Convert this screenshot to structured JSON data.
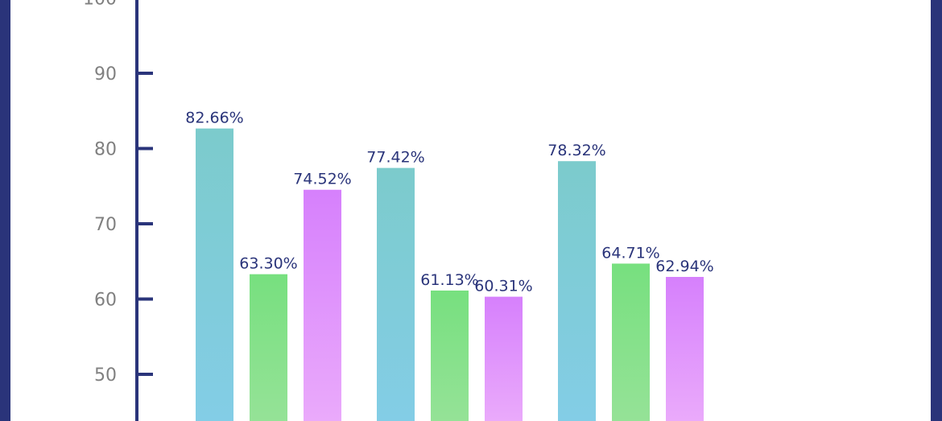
{
  "chart_data": {
    "type": "bar",
    "title": "",
    "xlabel": "",
    "ylabel": "",
    "ylim": [
      43.5,
      101.5
    ],
    "yticks": [
      50,
      60,
      70,
      80,
      90,
      100
    ],
    "categories": [
      "",
      "",
      ""
    ],
    "series": [
      {
        "values": [
          82.66,
          77.42,
          78.32
        ],
        "labels": [
          "82.66%",
          "77.42%",
          "78.32%"
        ]
      },
      {
        "values": [
          63.3,
          61.13,
          64.71
        ],
        "labels": [
          "63.30%",
          "61.13%",
          "64.71%"
        ]
      },
      {
        "values": [
          74.52,
          60.31,
          62.94
        ],
        "labels": [
          "74.52%",
          "60.31%",
          "62.94%"
        ]
      }
    ],
    "grid": false,
    "colors": {
      "frame": "#2a347a",
      "axis": "#2a347a",
      "tick_label": "#808080",
      "data_label": "#2a347a",
      "series": [
        {
          "top": "#7ccbcc",
          "bottom": "#83cde6"
        },
        {
          "top": "#77e07f",
          "bottom": "#95e297"
        },
        {
          "top": "#d680fc",
          "bottom": "#eaaafb"
        }
      ]
    }
  }
}
